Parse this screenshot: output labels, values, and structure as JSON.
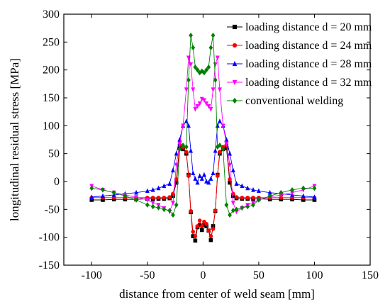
{
  "chart_data": {
    "type": "line",
    "title": "",
    "xlabel": "distance from center of weld seam [mm]",
    "ylabel": "longitudinal residual stress [MPa]",
    "xlim": [
      -125,
      150
    ],
    "ylim": [
      -150,
      300
    ],
    "xticks": [
      -100,
      -50,
      0,
      50,
      100,
      150
    ],
    "yticks": [
      -150,
      -100,
      -50,
      0,
      50,
      100,
      150,
      200,
      250,
      300
    ],
    "grid": false,
    "legend_position": "top-right",
    "series": [
      {
        "name": "loading distance d = 20 mm",
        "color": "#000000",
        "marker": "square",
        "x": [
          -100,
          -90,
          -80,
          -70,
          -60,
          -50,
          -45,
          -40,
          -35,
          -30,
          -27,
          -24,
          -21,
          -18,
          -15,
          -13,
          -11,
          -9,
          -7,
          -5,
          -3,
          -1,
          1,
          3,
          5,
          7,
          9,
          11,
          13,
          15,
          18,
          21,
          24,
          27,
          30,
          35,
          40,
          45,
          50,
          60,
          70,
          80,
          90,
          100
        ],
        "y": [
          -33,
          -33,
          -32,
          -32,
          -32,
          -31,
          -31,
          -31,
          -31,
          -30,
          -26,
          -2,
          60,
          58,
          50,
          12,
          -55,
          -98,
          -106,
          -82,
          -78,
          -87,
          -78,
          -80,
          -88,
          -105,
          -80,
          -53,
          12,
          50,
          58,
          60,
          -2,
          -26,
          -30,
          -31,
          -31,
          -31,
          -31,
          -32,
          -32,
          -32,
          -33,
          -33
        ]
      },
      {
        "name": "loading distance d = 24 mm",
        "color": "#ff0000",
        "marker": "circle",
        "x": [
          -100,
          -90,
          -80,
          -70,
          -60,
          -50,
          -45,
          -40,
          -35,
          -30,
          -27,
          -24,
          -21,
          -18,
          -15,
          -13,
          -11,
          -9,
          -7,
          -5,
          -3,
          -1,
          1,
          3,
          5,
          7,
          9,
          11,
          13,
          15,
          18,
          21,
          24,
          27,
          30,
          35,
          40,
          45,
          50,
          60,
          70,
          80,
          90,
          100
        ],
        "y": [
          -29,
          -29,
          -29,
          -29,
          -29,
          -29,
          -29,
          -29,
          -29,
          -28,
          -22,
          4,
          66,
          62,
          53,
          10,
          -53,
          -90,
          -98,
          -80,
          -70,
          -80,
          -72,
          -76,
          -88,
          -98,
          -85,
          -52,
          10,
          53,
          62,
          66,
          4,
          -22,
          -28,
          -29,
          -29,
          -29,
          -29,
          -29,
          -29,
          -29,
          -29,
          -29
        ]
      },
      {
        "name": "loading distance d = 28 mm",
        "color": "#0000ff",
        "marker": "triangle-up",
        "x": [
          -100,
          -90,
          -80,
          -70,
          -60,
          -50,
          -45,
          -40,
          -35,
          -30,
          -27,
          -24,
          -21,
          -18,
          -15,
          -13,
          -11,
          -9,
          -7,
          -5,
          -3,
          -1,
          1,
          3,
          5,
          7,
          9,
          11,
          13,
          15,
          18,
          21,
          24,
          27,
          30,
          35,
          40,
          45,
          50,
          60,
          70,
          80,
          90,
          100
        ],
        "y": [
          -28,
          -26,
          -24,
          -22,
          -20,
          -17,
          -15,
          -12,
          -8,
          -4,
          20,
          50,
          75,
          100,
          108,
          100,
          55,
          15,
          5,
          -2,
          10,
          5,
          12,
          0,
          -2,
          5,
          15,
          55,
          100,
          108,
          100,
          75,
          50,
          20,
          -4,
          -8,
          -12,
          -15,
          -17,
          -20,
          -22,
          -24,
          -26,
          -28
        ]
      },
      {
        "name": "loading distance d = 32 mm",
        "color": "#ff00ff",
        "marker": "triangle-down",
        "x": [
          -100,
          -90,
          -80,
          -70,
          -60,
          -50,
          -45,
          -40,
          -35,
          -30,
          -27,
          -24,
          -21,
          -18,
          -15,
          -13,
          -11,
          -9,
          -7,
          -5,
          -3,
          -1,
          1,
          3,
          5,
          7,
          9,
          11,
          13,
          15,
          18,
          21,
          24,
          27,
          30,
          35,
          40,
          45,
          50,
          60,
          70,
          80,
          90,
          100
        ],
        "y": [
          -8,
          -15,
          -20,
          -24,
          -28,
          -33,
          -38,
          -42,
          -48,
          -54,
          -38,
          30,
          68,
          100,
          165,
          222,
          210,
          165,
          130,
          135,
          140,
          148,
          146,
          140,
          135,
          130,
          165,
          210,
          222,
          165,
          100,
          68,
          30,
          -38,
          -54,
          -48,
          -42,
          -38,
          -33,
          -28,
          -24,
          -20,
          -15,
          -8
        ]
      },
      {
        "name": "conventional welding",
        "color": "#008000",
        "marker": "diamond",
        "x": [
          -100,
          -90,
          -80,
          -70,
          -60,
          -50,
          -45,
          -40,
          -35,
          -30,
          -27,
          -24,
          -21,
          -18,
          -15,
          -13,
          -11,
          -9,
          -7,
          -5,
          -3,
          -1,
          1,
          3,
          5,
          7,
          9,
          11,
          13,
          15,
          18,
          21,
          24,
          27,
          30,
          35,
          40,
          45,
          50,
          60,
          70,
          80,
          90,
          100
        ],
        "y": [
          -12,
          -15,
          -20,
          -26,
          -33,
          -42,
          -45,
          -47,
          -50,
          -52,
          -60,
          -42,
          58,
          65,
          62,
          182,
          262,
          240,
          205,
          200,
          195,
          198,
          195,
          200,
          205,
          240,
          262,
          182,
          62,
          65,
          58,
          -42,
          -60,
          -52,
          -50,
          -47,
          -45,
          -42,
          -33,
          -26,
          -20,
          -15,
          -12,
          -12
        ]
      }
    ]
  }
}
